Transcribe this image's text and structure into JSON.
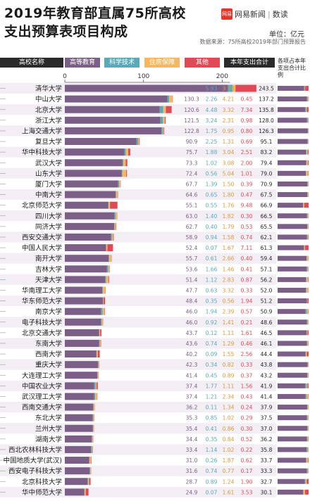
{
  "header": {
    "title_line1": "2019年教育部直属75所高校",
    "title_line2": "支出预算表项目构成",
    "brand_logo": "网易",
    "brand_name": "网易新闻",
    "brand_sub": "数读",
    "unit": "单位：亿元",
    "source": "数据来源：75所高校2019年部门预算报告"
  },
  "columns": {
    "school": "高校名称",
    "higher_edu": "高等教育",
    "sci_tech": "科学技术",
    "housing": "住房保障",
    "other": "其他",
    "total": "本年支出合计",
    "ratio": "各项占本年支出合计比例"
  },
  "colors": {
    "higher_edu": "#7b5f87",
    "sci_tech": "#5aa9b8",
    "housing": "#f3b861",
    "other": "#e04a57",
    "header_dark": "#2b2b2b",
    "row_band": "#f2eef4"
  },
  "chart_data": {
    "type": "bar",
    "stacked": true,
    "orientation": "horizontal",
    "xlim": [
      0,
      210
    ],
    "x_ticks": [
      0,
      100,
      200
    ],
    "categories": [
      "清华大学",
      "中山大学",
      "北京大学",
      "浙江大学",
      "上海交通大学",
      "复旦大学",
      "华中科技大学",
      "武汉大学",
      "山东大学",
      "厦门大学",
      "中南大学",
      "北京师范大学",
      "四川大学",
      "同济大学",
      "西安交通大学",
      "中国人民大学",
      "南开大学",
      "吉林大学",
      "天津大学",
      "华南理工大学",
      "华东师范大学",
      "南京大学",
      "电子科技大学",
      "北京交通大学",
      "东南大学",
      "西南大学",
      "重庆大学",
      "大连理工大学",
      "中国农业大学",
      "武汉理工大学",
      "西南交通大学",
      "东北大学",
      "兰州大学",
      "湖南大学",
      "西北农林科技大学",
      "中国地质大学(武汉)",
      "西安电子科技大学",
      "北京科技大学",
      "华中师范大学"
    ],
    "series": [
      {
        "name": "高等教育",
        "values": [
          207.2,
          130.3,
          120.6,
          121.5,
          122.8,
          90.9,
          75.7,
          73.3,
          72.4,
          67.7,
          64.6,
          55.1,
          63.0,
          62.7,
          58.9,
          52.4,
          55.7,
          53.6,
          51.4,
          47.7,
          48.4,
          46.0,
          46.0,
          43.7,
          43.6,
          40.2,
          42.3,
          41.4,
          37.4,
          37.4,
          36.2,
          35.3,
          35.4,
          34.4,
          33.4,
          31.0,
          31.6,
          28.7,
          24.9
        ]
      },
      {
        "name": "科学技术",
        "values": [
          5.93,
          2.26,
          4.48,
          3.24,
          1.75,
          2.25,
          1.88,
          1.02,
          0.56,
          1.39,
          0.65,
          0.55,
          1.4,
          0.4,
          0.94,
          0.07,
          0.61,
          1.66,
          1.12,
          0.63,
          0.35,
          1.94,
          0.92,
          0.12,
          0.74,
          0.09,
          0.34,
          0.45,
          1.77,
          1.21,
          0.11,
          0.85,
          0.41,
          0.35,
          1.14,
          0.26,
          0.74,
          0.89,
          0.07
        ]
      },
      {
        "name": "住房保障",
        "values": [
          3.7,
          4.21,
          3.32,
          2.31,
          0.95,
          1.31,
          3.04,
          3.08,
          5.04,
          1.5,
          1.8,
          1.76,
          1.82,
          1.79,
          1.58,
          1.67,
          2.66,
          1.46,
          2.83,
          3.32,
          0.56,
          2.39,
          1.41,
          1.11,
          1.29,
          1.55,
          0.82,
          0.89,
          1.11,
          2.34,
          1.34,
          1.02,
          0.86,
          0.84,
          1.02,
          1.87,
          0.77,
          1.24,
          1.61
        ]
      },
      {
        "name": "其他",
        "values": [
          26.6,
          0.45,
          7.34,
          0.98,
          0.8,
          0.69,
          2.51,
          2.0,
          1.01,
          0.39,
          0.47,
          9.48,
          0.3,
          0.53,
          0.74,
          7.11,
          0.4,
          0.41,
          0.87,
          0.33,
          1.94,
          0.57,
          0.21,
          1.61,
          0.46,
          2.56,
          0.33,
          0.37,
          1.56,
          0.43,
          0.24,
          0.29,
          0.3,
          0.52,
          0.22,
          0.62,
          0.17,
          1.9,
          3.53
        ]
      }
    ],
    "totals": [
      243.5,
      137.2,
      135.8,
      128.0,
      126.3,
      95.1,
      83.2,
      79.4,
      79.0,
      70.9,
      67.5,
      66.9,
      66.5,
      65.5,
      62.1,
      61.3,
      59.4,
      57.1,
      56.2,
      52.0,
      51.2,
      50.9,
      48.6,
      46.5,
      46.1,
      44.4,
      43.8,
      43.2,
      41.9,
      41.4,
      37.9,
      37.5,
      37.0,
      36.2,
      35.8,
      33.7,
      33.3,
      32.7,
      30.1
    ]
  }
}
